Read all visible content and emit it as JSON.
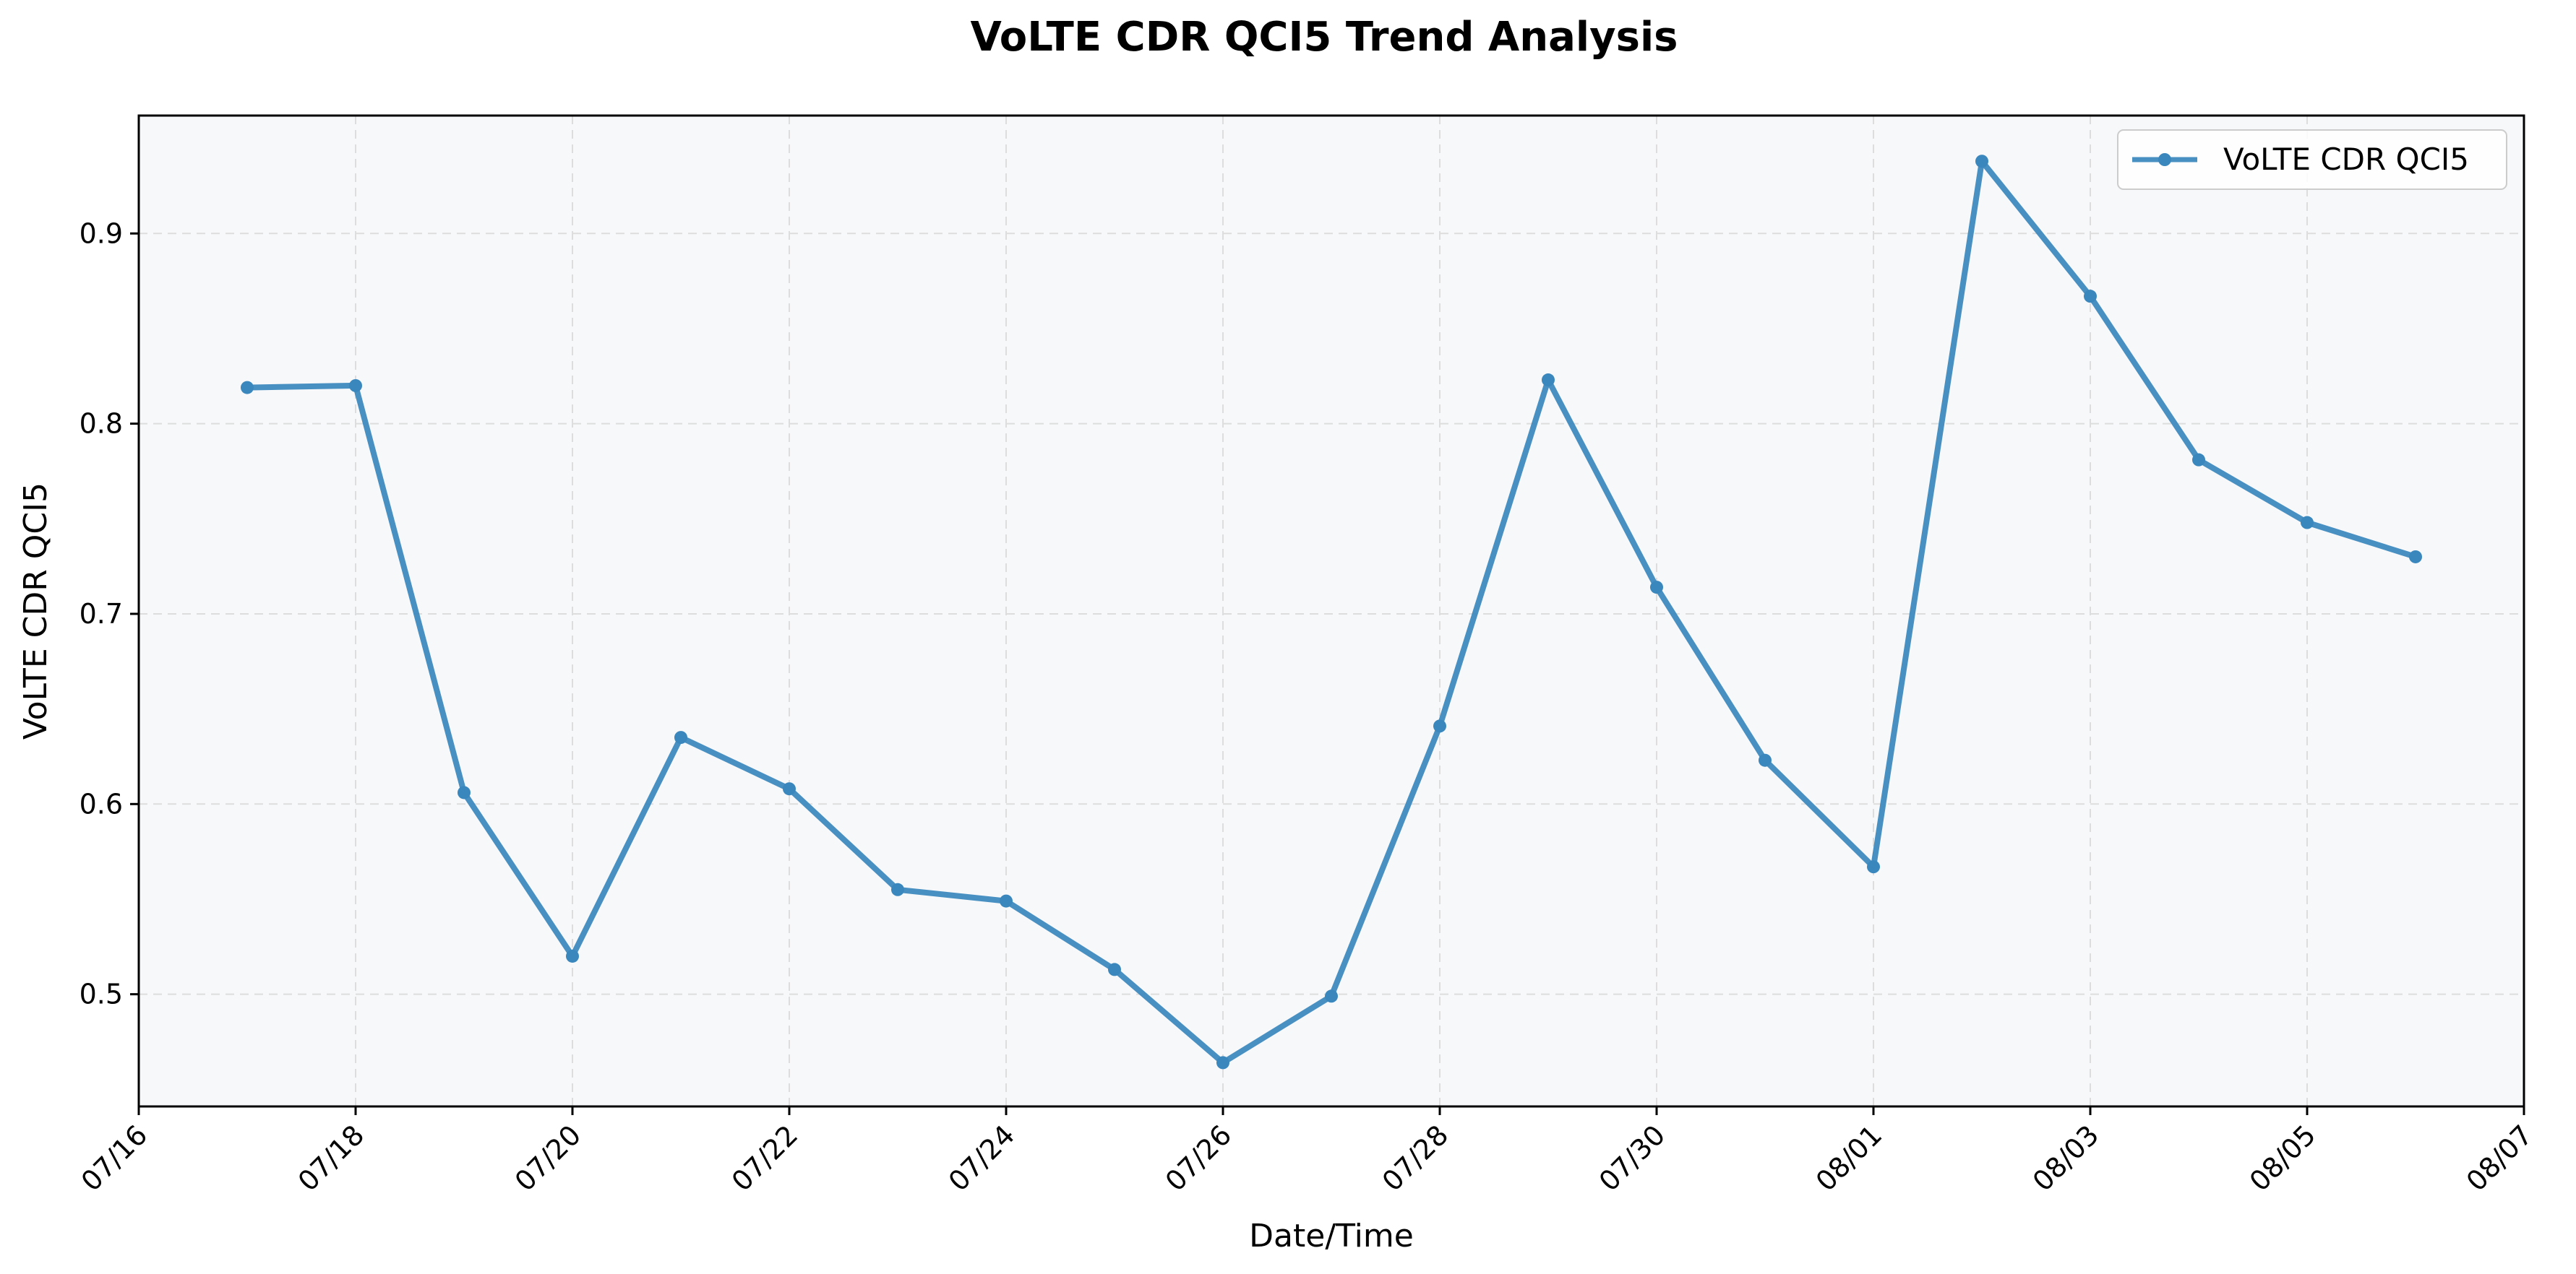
{
  "chart_data": {
    "type": "line",
    "title": "VoLTE CDR QCI5 Trend Analysis",
    "xlabel": "Date/Time",
    "ylabel": "VoLTE CDR QCI5",
    "x_ticks": [
      "07/16",
      "07/18",
      "07/20",
      "07/22",
      "07/24",
      "07/26",
      "07/28",
      "07/30",
      "08/01",
      "08/03",
      "08/05",
      "08/07"
    ],
    "y_ticks": [
      0.5,
      0.6,
      0.7,
      0.8,
      0.9
    ],
    "xlim": [
      "2023-07-16",
      "2023-08-07"
    ],
    "ylim": [
      0.441,
      0.962
    ],
    "grid": true,
    "legend_position": "upper right",
    "background_color": "#f6f8fa",
    "series": [
      {
        "name": "VoLTE CDR QCI5",
        "color": "#3a87bd",
        "x": [
          "07/17",
          "07/18",
          "07/19",
          "07/20",
          "07/21",
          "07/22",
          "07/23",
          "07/24",
          "07/25",
          "07/26",
          "07/27",
          "07/28",
          "07/29",
          "07/30",
          "07/31",
          "08/01",
          "08/02",
          "08/03",
          "08/04",
          "08/05",
          "08/06"
        ],
        "values": [
          0.819,
          0.82,
          0.606,
          0.52,
          0.635,
          0.608,
          0.555,
          0.549,
          0.513,
          0.464,
          0.499,
          0.641,
          0.823,
          0.714,
          0.623,
          0.567,
          0.938,
          0.867,
          0.781,
          0.748,
          0.73
        ]
      }
    ]
  }
}
